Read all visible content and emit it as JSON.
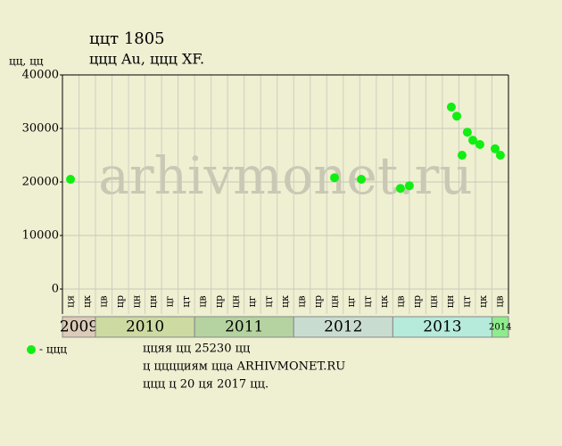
{
  "chart_data": {
    "type": "scatter",
    "title": "ццт 1805",
    "subtitle": "ццц Au, ццц XF.",
    "y_label": "цц, цц",
    "watermark": "arhivmonet.ru",
    "ylim": [
      0,
      40000
    ],
    "yticks": [
      0,
      10000,
      20000,
      30000,
      40000
    ],
    "grid": true,
    "xlim": [
      0,
      27
    ],
    "years": [
      {
        "label": "2009",
        "color": "#dccbb8",
        "months": [
          "ця",
          "цк"
        ]
      },
      {
        "label": "2010",
        "color": "#cddaa2",
        "months": [
          "цв",
          "цр",
          "цн",
          "цн",
          "цг",
          "цт"
        ]
      },
      {
        "label": "2011",
        "color": "#b4d3a0",
        "months": [
          "цв",
          "цр",
          "цн",
          "цг",
          "цт",
          "цк"
        ]
      },
      {
        "label": "2012",
        "color": "#c9dcd0",
        "months": [
          "цв",
          "цр",
          "цн",
          "цг",
          "цт",
          "цк"
        ]
      },
      {
        "label": "2013",
        "color": "#b6eadb",
        "months": [
          "цв",
          "цр",
          "цн",
          "цн",
          "цт",
          "цк"
        ]
      },
      {
        "label": "2014",
        "color": "#8eec8e",
        "months": [
          "цв"
        ]
      }
    ],
    "series": [
      {
        "name": "- ццц",
        "color": "#11ee11",
        "x": [
          0.49,
          16.47,
          18.09,
          20.46,
          21.0,
          23.54,
          23.87,
          24.19,
          24.51,
          24.84,
          25.27,
          26.19,
          26.51
        ],
        "values": [
          20500,
          20800,
          20500,
          18800,
          19300,
          34000,
          32300,
          25000,
          29300,
          27800,
          27000,
          26200,
          25000
        ]
      }
    ],
    "notes": [
      "ццяя цц 25230 цц",
      "ц цццциям цца ARHIVMONET.RU",
      "ццц ц 20 ця 2017 цц."
    ]
  }
}
